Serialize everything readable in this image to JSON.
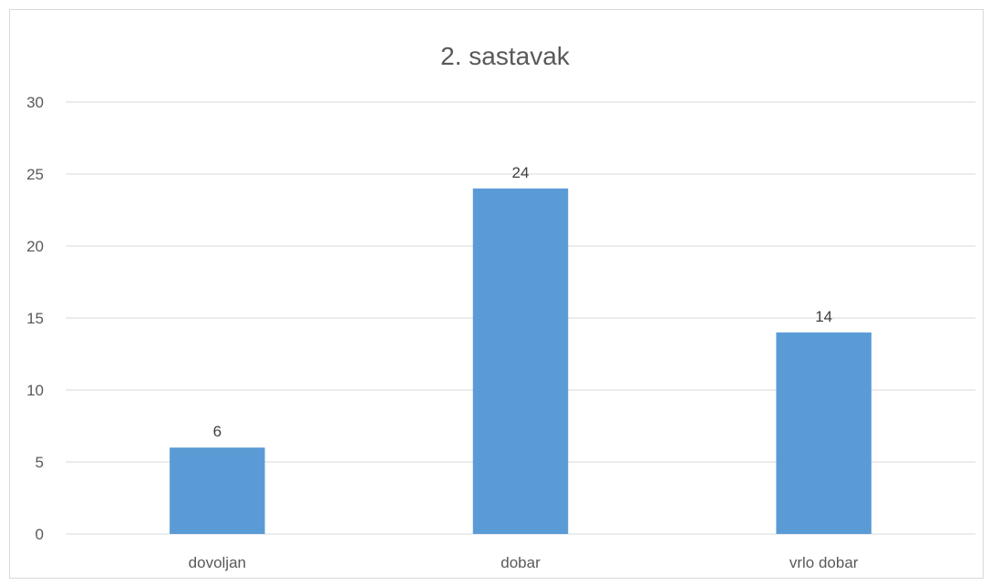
{
  "chart_data": {
    "type": "bar",
    "title": "2. sastavak",
    "categories": [
      "dovoljan",
      "dobar",
      "vrlo dobar"
    ],
    "values": [
      6,
      24,
      14
    ],
    "ylim": [
      0,
      30
    ],
    "yticks": [
      0,
      5,
      10,
      15,
      20,
      25,
      30
    ],
    "grid": true,
    "legend": "none",
    "data_labels": true,
    "colors": {
      "bar": "#5b9bd5"
    }
  }
}
